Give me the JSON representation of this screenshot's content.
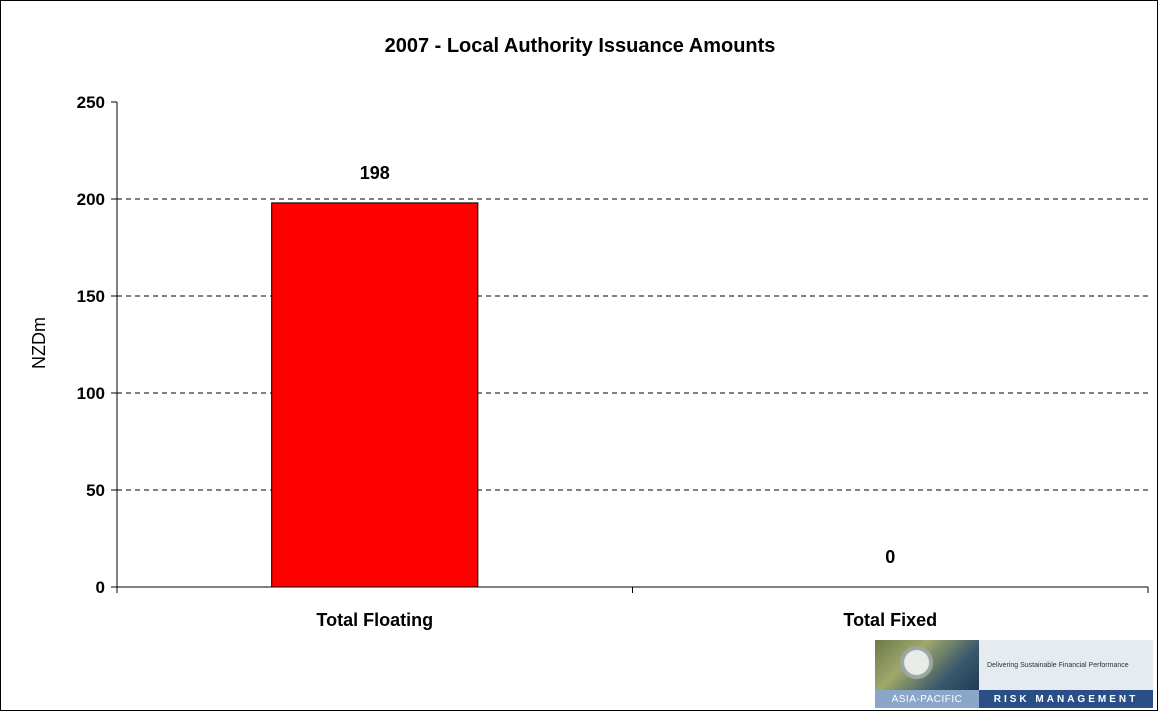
{
  "chart_data": {
    "type": "bar",
    "title": "2007 - Local Authority Issuance Amounts",
    "ylabel": "NZDm",
    "xlabel": "",
    "categories": [
      "Total Floating",
      "Total Fixed"
    ],
    "values": [
      198,
      0
    ],
    "data_labels": [
      "198",
      "0"
    ],
    "ylim": [
      0,
      250
    ],
    "y_ticks": [
      0,
      50,
      100,
      150,
      200,
      250
    ],
    "grid": "horizontal dashed",
    "legend": "none",
    "bar_color": "#ff0000"
  },
  "logo": {
    "tagline": "Delivering Sustainable Financial Performance",
    "left_text": "ASIA-PACIFIC",
    "right_text": "RISK MANAGEMENT"
  }
}
